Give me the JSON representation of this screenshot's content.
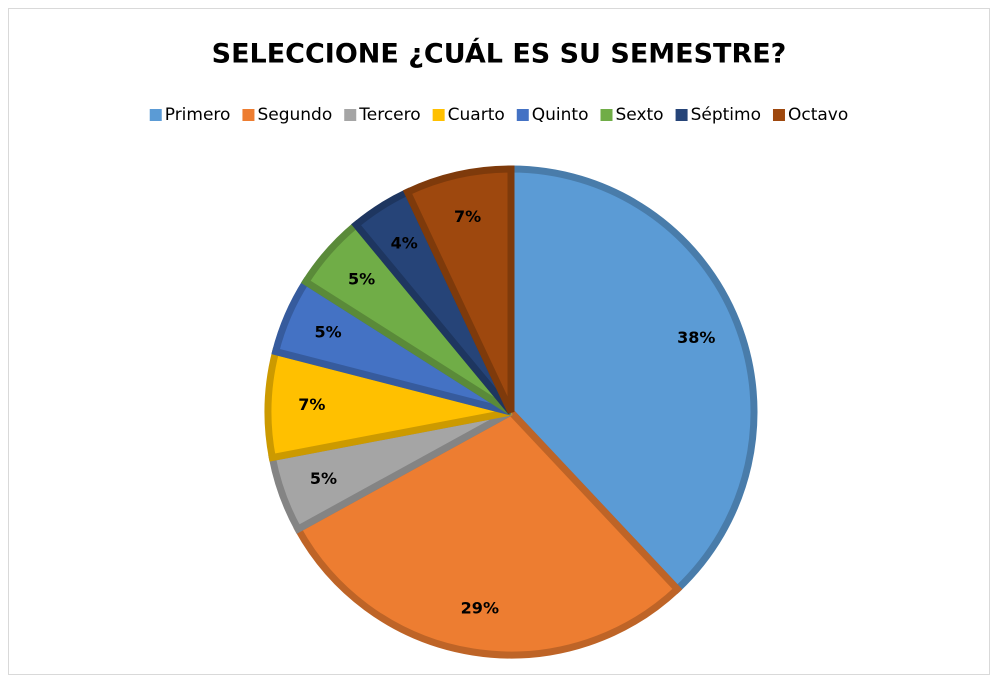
{
  "chart_data": {
    "type": "pie",
    "title": "SELECCIONE ¿CUÁL ES SU SEMESTRE?",
    "categories": [
      "Primero",
      "Segundo",
      "Tercero",
      "Cuarto",
      "Quinto",
      "Sexto",
      "Séptimo",
      "Octavo"
    ],
    "values": [
      38,
      29,
      5,
      7,
      5,
      5,
      4,
      7
    ],
    "value_labels": [
      "38%",
      "29%",
      "5%",
      "7%",
      "5%",
      "5%",
      "4%",
      "7%"
    ],
    "colors": [
      "#5b9bd5",
      "#ed7d31",
      "#a5a5a5",
      "#ffc000",
      "#4472c4",
      "#70ad47",
      "#264478",
      "#9e480e"
    ],
    "legend": "top"
  }
}
